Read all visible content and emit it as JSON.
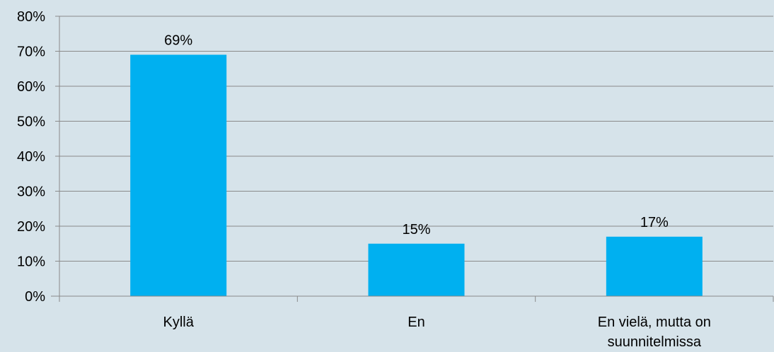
{
  "chart_data": {
    "type": "bar",
    "categories": [
      "Kyllä",
      "En",
      "En vielä, mutta on suunnitelmissa"
    ],
    "category_lines": [
      [
        "Kyllä"
      ],
      [
        "En"
      ],
      [
        "En vielä, mutta on",
        "suunnitelmissa"
      ]
    ],
    "values": [
      69,
      15,
      17
    ],
    "data_labels": [
      "69%",
      "15%",
      "17%"
    ],
    "y_ticks": [
      "0%",
      "10%",
      "20%",
      "30%",
      "40%",
      "50%",
      "60%",
      "70%",
      "80%"
    ],
    "ylim": [
      0,
      80
    ],
    "y_unit": "%",
    "grid": true,
    "legend": "none",
    "colors": {
      "bar": "#00b0f0",
      "background": "#d6e3ea",
      "grid": "#8a8a8a",
      "axis": "#8a8a8a"
    }
  }
}
